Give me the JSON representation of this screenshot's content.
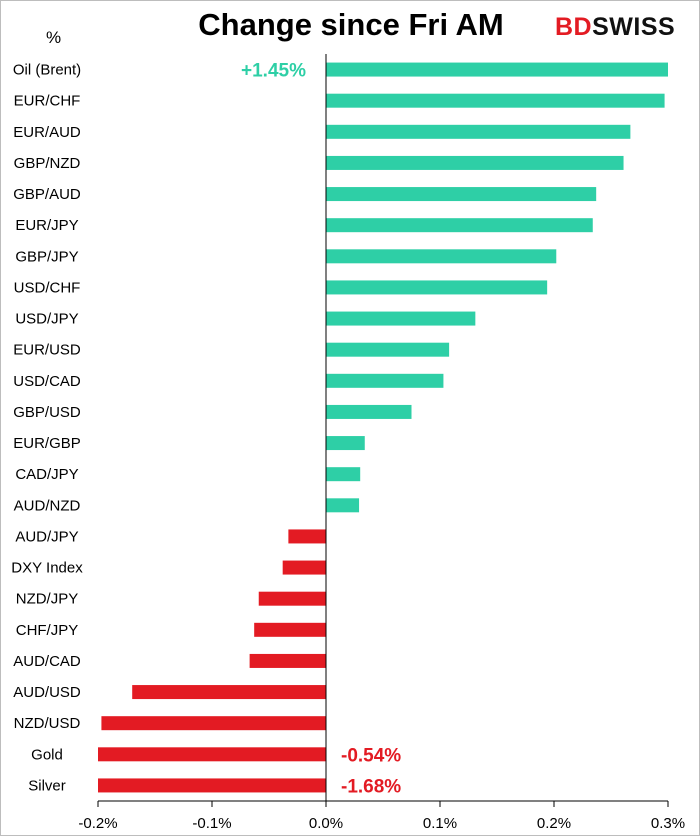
{
  "chart_data": {
    "type": "bar",
    "orientation": "horizontal",
    "title": "Change since Fri AM",
    "unit_label": "%",
    "categories": [
      "Oil (Brent)",
      "EUR/CHF",
      "EUR/AUD",
      "GBP/NZD",
      "GBP/AUD",
      "EUR/JPY",
      "GBP/JPY",
      "USD/CHF",
      "USD/JPY",
      "EUR/USD",
      "USD/CAD",
      "GBP/USD",
      "EUR/GBP",
      "CAD/JPY",
      "AUD/NZD",
      "AUD/JPY",
      "DXY Index",
      "NZD/JPY",
      "CHF/JPY",
      "AUD/CAD",
      "AUD/USD",
      "NZD/USD",
      "Gold",
      "Silver"
    ],
    "values": [
      0.3,
      0.297,
      0.267,
      0.261,
      0.237,
      0.234,
      0.202,
      0.194,
      0.131,
      0.108,
      0.103,
      0.075,
      0.034,
      0.03,
      0.029,
      -0.033,
      -0.038,
      -0.059,
      -0.063,
      -0.067,
      -0.17,
      -0.197,
      -0.2,
      -0.2
    ],
    "xlim": [
      -0.2,
      0.3
    ],
    "xticks": [
      "-0.2%",
      "-0.1%",
      "0.0%",
      "0.1%",
      "0.2%",
      "0.3%"
    ],
    "xtick_values": [
      -0.2,
      -0.1,
      0.0,
      0.1,
      0.2,
      0.3
    ],
    "annotations": [
      {
        "category": "Oil (Brent)",
        "text": "+1.45%",
        "color": "#2ecfa6"
      },
      {
        "category": "Gold",
        "text": "-0.54%",
        "color": "#e31b23"
      },
      {
        "category": "Silver",
        "text": "-1.68%",
        "color": "#e31b23"
      }
    ],
    "positive_color": "#2ecfa6",
    "negative_color": "#e31b23",
    "grid": false
  },
  "brand": {
    "part1": "BD",
    "part2": "SWISS",
    "color1": "#e31b23",
    "color2": "#111111"
  }
}
